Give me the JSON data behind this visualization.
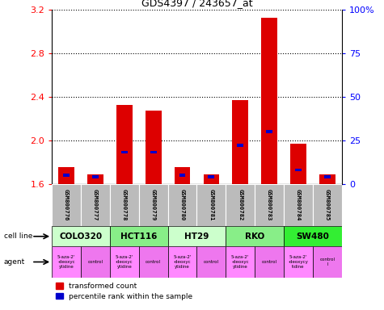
{
  "title": "GDS4397 / 243657_at",
  "samples": [
    "GSM800776",
    "GSM800777",
    "GSM800778",
    "GSM800779",
    "GSM800780",
    "GSM800781",
    "GSM800782",
    "GSM800783",
    "GSM800784",
    "GSM800785"
  ],
  "red_values": [
    1.75,
    1.685,
    2.32,
    2.27,
    1.75,
    1.685,
    2.37,
    3.12,
    1.97,
    1.685
  ],
  "blue_values": [
    5,
    4,
    18,
    18,
    5,
    4,
    22,
    30,
    8,
    4
  ],
  "blue_scale_max": 100,
  "ylim": [
    1.6,
    3.2
  ],
  "yticks": [
    1.6,
    2.0,
    2.4,
    2.8,
    3.2
  ],
  "right_yticks": [
    0,
    25,
    50,
    75,
    100
  ],
  "right_yticklabels": [
    "0",
    "25",
    "50",
    "75",
    "100%"
  ],
  "cell_lines": [
    {
      "name": "COLO320",
      "start": 0,
      "end": 2,
      "color": "#ccffcc"
    },
    {
      "name": "HCT116",
      "start": 2,
      "end": 4,
      "color": "#88ee88"
    },
    {
      "name": "HT29",
      "start": 4,
      "end": 6,
      "color": "#ccffcc"
    },
    {
      "name": "RKO",
      "start": 6,
      "end": 8,
      "color": "#88ee88"
    },
    {
      "name": "SW480",
      "start": 8,
      "end": 10,
      "color": "#33ee33"
    }
  ],
  "agents": [
    {
      "name": "5-aza-2'\n-deoxyc\nytidine",
      "type": "drug"
    },
    {
      "name": "control",
      "type": "control"
    },
    {
      "name": "5-aza-2'\n-deoxyc\nytidine",
      "type": "drug"
    },
    {
      "name": "control",
      "type": "control"
    },
    {
      "name": "5-aza-2'\n-deoxyc\nytidine",
      "type": "drug"
    },
    {
      "name": "control",
      "type": "control"
    },
    {
      "name": "5-aza-2'\n-deoxyc\nytidine",
      "type": "drug"
    },
    {
      "name": "control",
      "type": "control"
    },
    {
      "name": "5-aza-2'\n-deoxycy\ntidine",
      "type": "drug"
    },
    {
      "name": "control\nl",
      "type": "control"
    }
  ],
  "drug_color": "#ff88ff",
  "control_color": "#ee77ee",
  "bar_color": "#dd0000",
  "blue_bar_color": "#0000cc",
  "bar_width": 0.55,
  "blue_bar_width": 0.22,
  "sample_bg_color": "#bbbbbb",
  "legend_red": "transformed count",
  "legend_blue": "percentile rank within the sample"
}
